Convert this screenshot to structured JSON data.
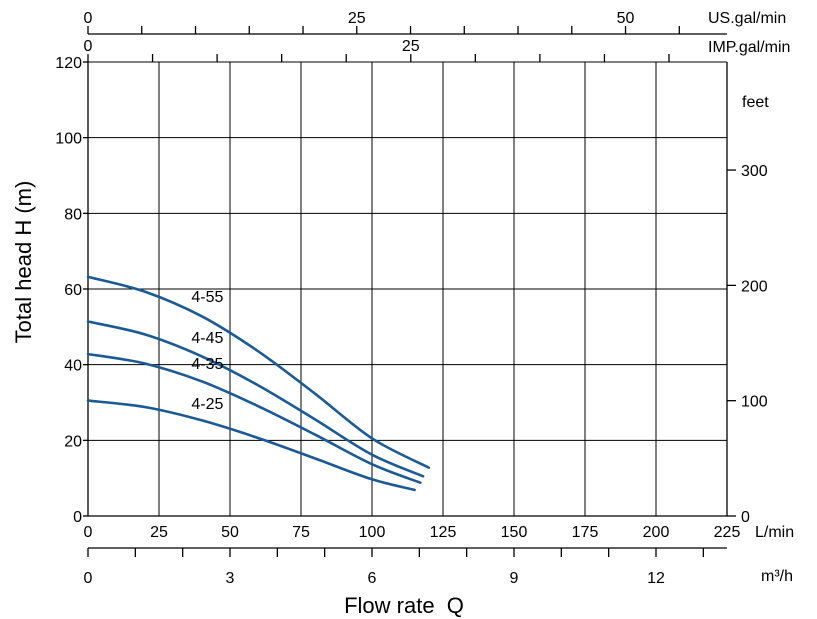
{
  "chart_data": {
    "type": "line",
    "ylabel": "Total head H (m)",
    "xlabel": "Flow rate  Q",
    "xlim": [
      0,
      225
    ],
    "ylim": [
      0,
      120
    ],
    "x_ticks": [
      25,
      50,
      75,
      100,
      125,
      150,
      175,
      200,
      225
    ],
    "x_unit": "L/min",
    "y_ticks": [
      0,
      20,
      40,
      60,
      80,
      100,
      120
    ],
    "grid": true,
    "series_color": "#1a5a96",
    "series": [
      {
        "name": "4-55",
        "x": [
          0,
          20,
          40,
          60,
          80,
          100,
          120
        ],
        "y": [
          63.2,
          59.3,
          52.8,
          43.5,
          32.3,
          20.5,
          12.8
        ]
      },
      {
        "name": "4-45",
        "x": [
          0,
          20,
          40,
          60,
          80,
          100,
          118
        ],
        "y": [
          51.4,
          48.0,
          42.2,
          34.5,
          25.5,
          16.2,
          10.5
        ]
      },
      {
        "name": "4-35",
        "x": [
          0,
          20,
          40,
          60,
          80,
          100,
          117
        ],
        "y": [
          42.8,
          40.3,
          35.6,
          29.0,
          21.5,
          13.7,
          8.8
        ]
      },
      {
        "name": "4-25",
        "x": [
          0,
          20,
          40,
          60,
          80,
          100,
          115
        ],
        "y": [
          30.5,
          28.8,
          25.3,
          20.6,
          15.2,
          9.7,
          6.9
        ]
      }
    ],
    "secondary_axes": {
      "us_gal": {
        "unit": "US.gal/min",
        "ticks": [
          0,
          25,
          50
        ],
        "factor": 0.264172
      },
      "imp_gal": {
        "unit": "IMP.gal/min",
        "ticks": [
          0,
          25
        ],
        "factor": 0.219969
      },
      "feet": {
        "unit": "feet",
        "ticks": [
          0,
          100,
          200,
          300
        ],
        "factor": 3.28084
      },
      "m3h": {
        "unit": "m³/h",
        "ticks": [
          0,
          3,
          6,
          9,
          12
        ],
        "factor": 0.06
      }
    }
  }
}
